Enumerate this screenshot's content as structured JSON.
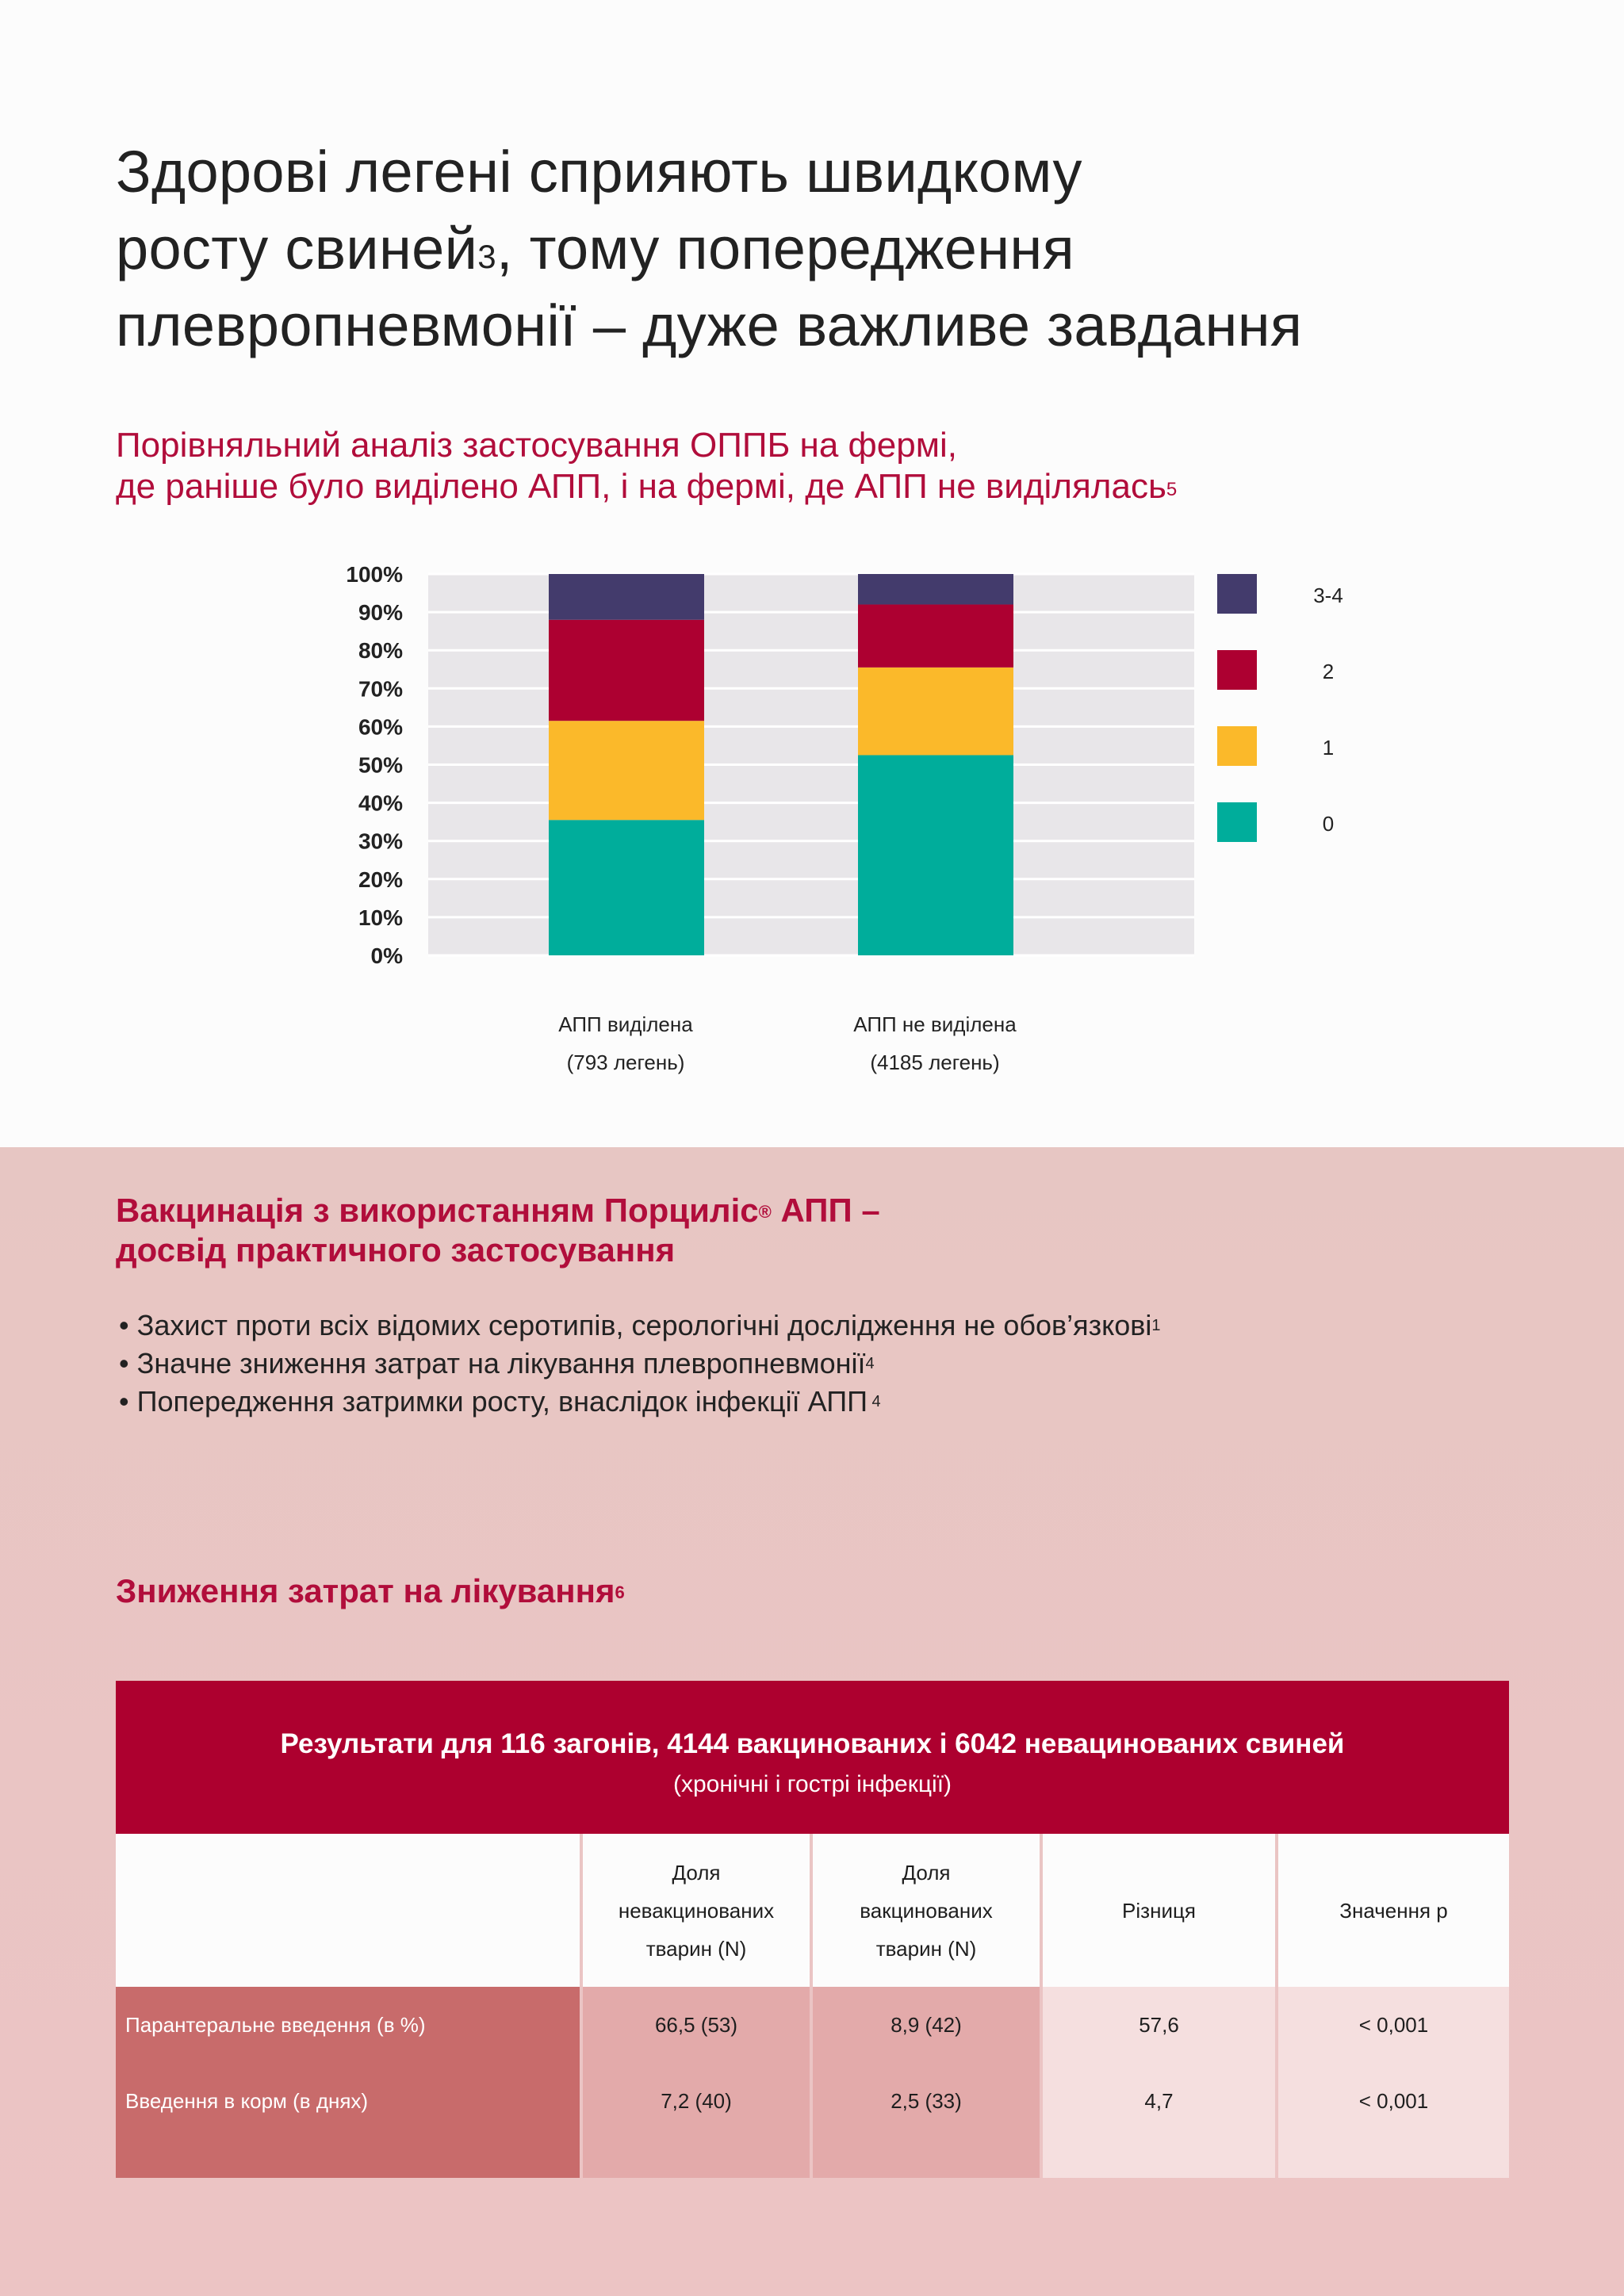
{
  "title": {
    "line1": "Здорові легені сприяють швидкому",
    "line2a": "росту свиней",
    "line2sup": "3",
    "line2b": ", тому попередження",
    "line3": "плевропневмонії – дуже важливе завдання"
  },
  "subtitle": {
    "line1": "Порівняльний аналіз застосування ОППБ на фермі,",
    "line2": "де раніше було виділено АПП, і на фермі, де АПП не виділялась",
    "sup": "5"
  },
  "chart_data": {
    "type": "bar",
    "stacked": true,
    "ylim": [
      0,
      100
    ],
    "y_ticks": [
      "100%",
      "90%",
      "80%",
      "70%",
      "60%",
      "50%",
      "40%",
      "30%",
      "20%",
      "10%",
      "0%"
    ],
    "categories": [
      {
        "line1": "АПП виділена",
        "line2": "(793 легень)"
      },
      {
        "line1": "АПП не виділена",
        "line2": "(4185 легень)"
      }
    ],
    "series": [
      {
        "name": "0",
        "color": "#00ad9b",
        "values": [
          35.5,
          52.5
        ]
      },
      {
        "name": "1",
        "color": "#fbb92a",
        "values": [
          26,
          23
        ]
      },
      {
        "name": "2",
        "color": "#ad0031",
        "values": [
          26.5,
          16.5
        ]
      },
      {
        "name": "3-4",
        "color": "#433b6c",
        "values": [
          12,
          8
        ]
      }
    ],
    "legend_order": [
      "3-4",
      "2",
      "1",
      "0"
    ],
    "grid": true,
    "legend_position": "right"
  },
  "section2": {
    "heading_a": "Вакцинація з використанням Порциліс",
    "heading_reg": "®",
    "heading_b": " АПП –",
    "heading_line2": "досвід практичного застосування"
  },
  "bullets": [
    {
      "text": "• Захист проти всіх відомих серотипів, серологічні дослідження не обов’язкові",
      "sup": "1"
    },
    {
      "text": "• Значне зниження затрат на лікування плевропневмонії",
      "sup": "4"
    },
    {
      "text": "• Попередження затримки росту, внаслідок інфекції АПП",
      "sup": " 4"
    }
  ],
  "section3": {
    "heading": "Зниження затрат на лікування",
    "sup": "6"
  },
  "table": {
    "title": "Результати для 116 загонів, 4144 вакцинованих і 6042 невацинованих свиней",
    "subtitle": "(хронічні і гострі інфекції)",
    "headers": [
      {
        "l1": "",
        "l2": "",
        "l3": ""
      },
      {
        "l1": "Доля",
        "l2": "невакцинованих",
        "l3": "тварин (N)"
      },
      {
        "l1": "Доля",
        "l2": "вакцинованих",
        "l3": "тварин (N)"
      },
      {
        "l1": "",
        "l2": "Різниця",
        "l3": ""
      },
      {
        "l1": "",
        "l2": "Значення р",
        "l3": ""
      }
    ],
    "rows": [
      {
        "label": "Парантеральне введення (в %)",
        "c1": "66,5 (53)",
        "c2": "8,9 (42)",
        "c3": "57,6",
        "c4": "< 0,001"
      },
      {
        "label": "Введення в корм (в днях)",
        "c1": "7,2 (40)",
        "c2": "2,5 (33)",
        "c3": "4,7",
        "c4": "< 0,001"
      }
    ],
    "colors": {
      "label_bg": "#c86b6b",
      "mid_bg": "#e3aaaa",
      "light_bg": "#f5dfdf",
      "header_bg": "#ad002f"
    }
  }
}
